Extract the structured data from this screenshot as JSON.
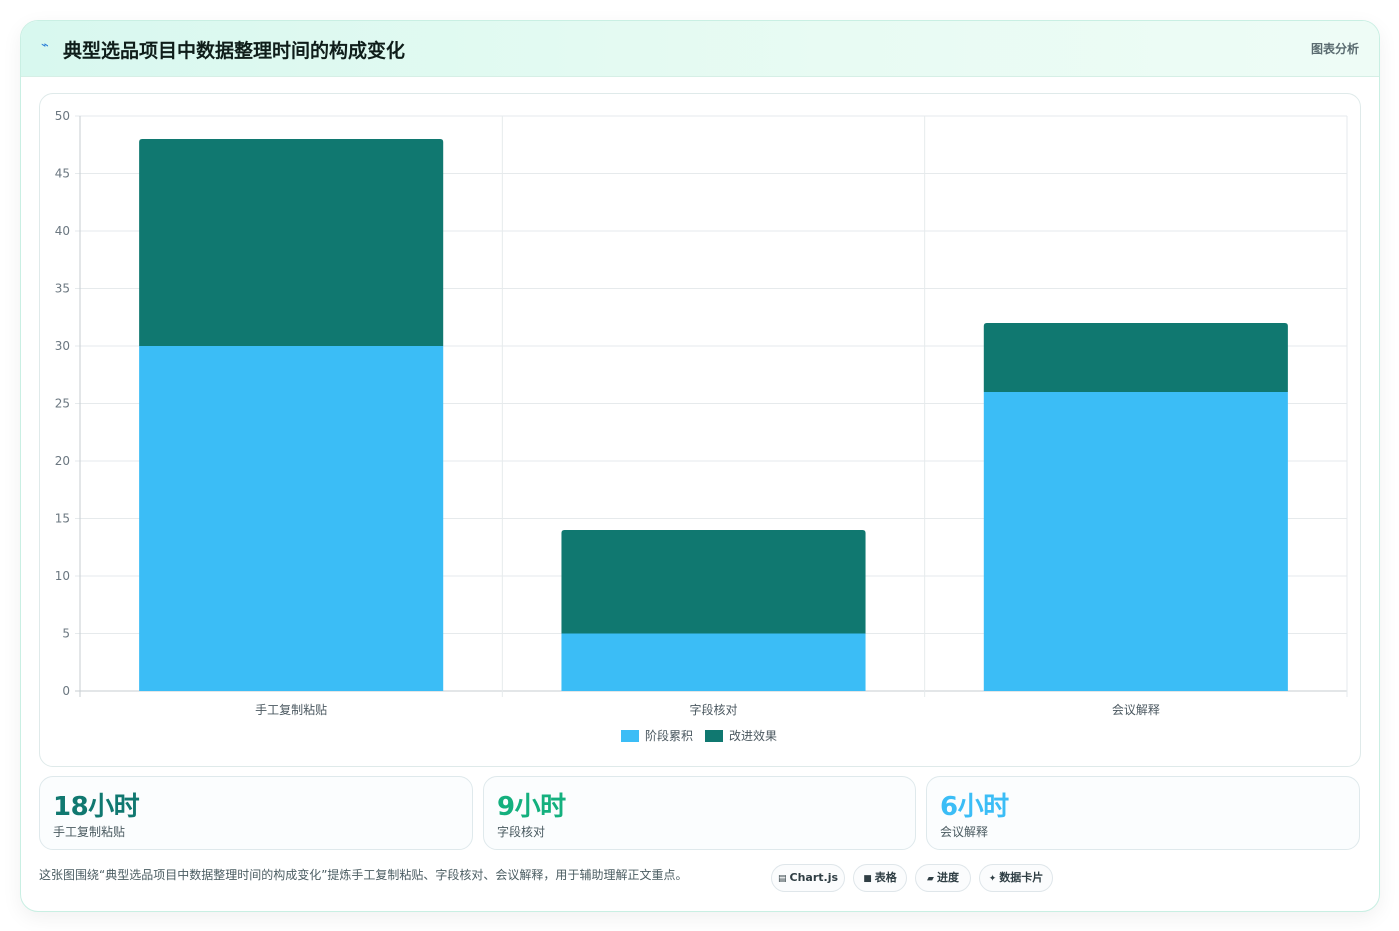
{
  "header": {
    "icon": "trend-icon",
    "title": "典型选品项目中数据整理时间的构成变化",
    "right_label": "图表分析"
  },
  "chart_data": {
    "type": "bar",
    "stacked": true,
    "categories": [
      "手工复制粘贴",
      "字段核对",
      "会议解释"
    ],
    "series": [
      {
        "name": "阶段累积",
        "color": "#3bbdf6",
        "values": [
          30,
          5,
          26
        ]
      },
      {
        "name": "改进效果",
        "color": "#107870",
        "values": [
          18,
          9,
          6
        ]
      }
    ],
    "ylim": [
      0,
      50
    ],
    "yticks": [
      0,
      5,
      10,
      15,
      20,
      25,
      30,
      35,
      40,
      45,
      50
    ],
    "grid": true,
    "legend": "bottom"
  },
  "stats": [
    {
      "value": "18小时",
      "label": "手工复制粘贴",
      "color": "#107870"
    },
    {
      "value": "9小时",
      "label": "字段核对",
      "color": "#14b07e"
    },
    {
      "value": "6小时",
      "label": "会议解释",
      "color": "#3bbdf6"
    }
  ],
  "caption": "这张图围绕“典型选品项目中数据整理时间的构成变化”提炼手工复制粘贴、字段核对、会议解释，用于辅助理解正文重点。",
  "chips": [
    {
      "icon": "chart-icon",
      "glyph": "▤",
      "label": "Chart.js"
    },
    {
      "icon": "table-icon",
      "glyph": "■",
      "label": "表格"
    },
    {
      "icon": "progress-icon",
      "glyph": "▰",
      "label": "进度"
    },
    {
      "icon": "card-icon",
      "glyph": "✦",
      "label": "数据卡片"
    }
  ]
}
